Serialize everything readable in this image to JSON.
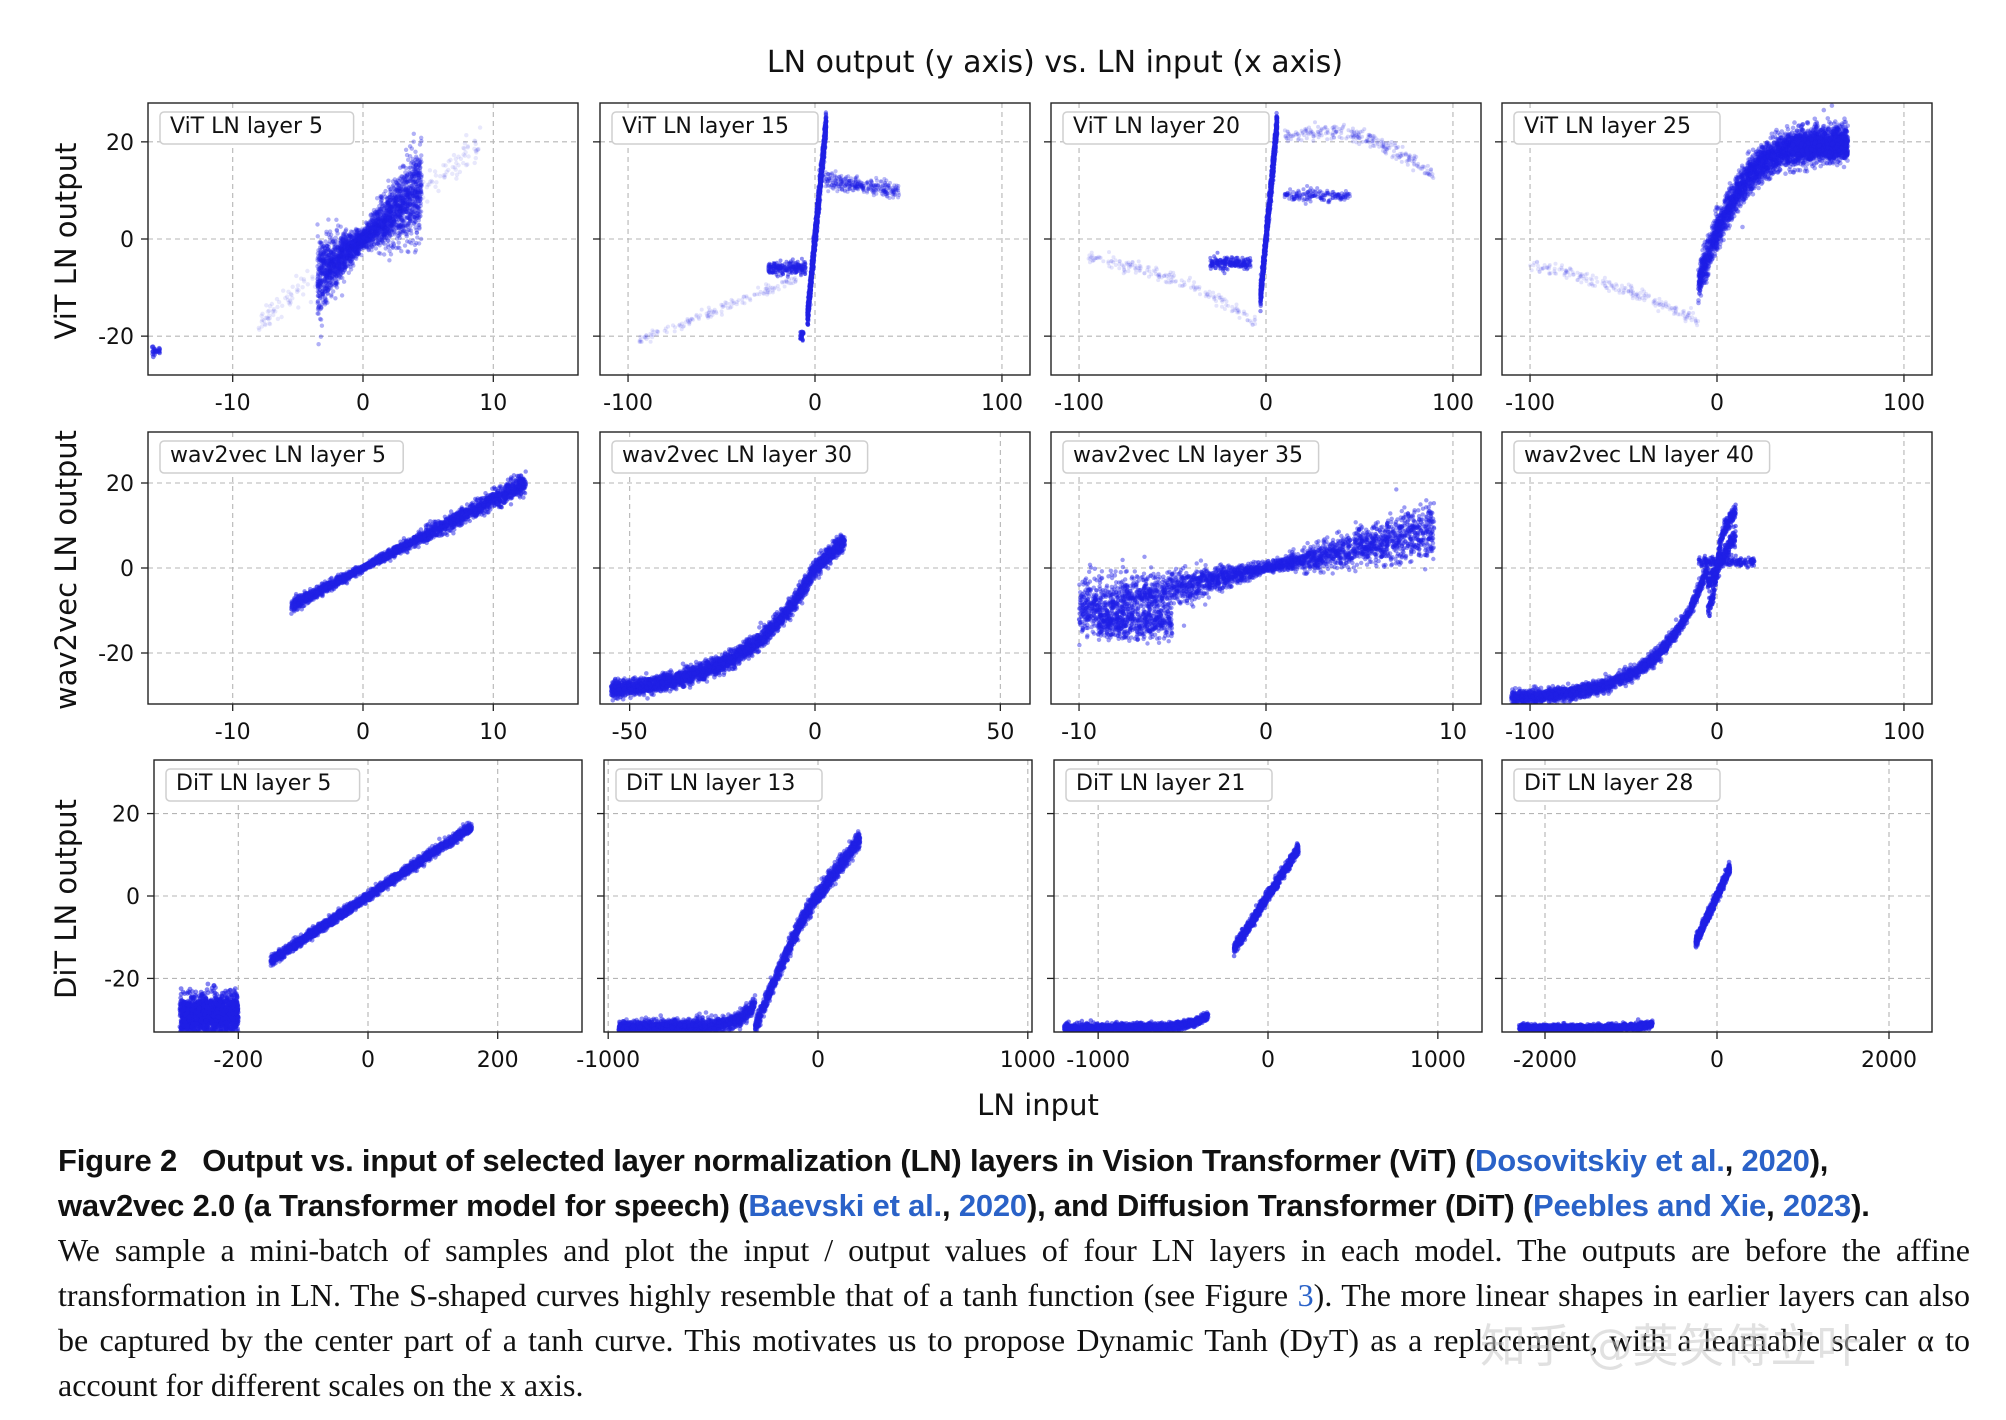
{
  "figure": {
    "title": "LN output (y axis) vs. LN input (x axis)",
    "xlabel": "LN input",
    "rows": [
      {
        "ylabel": "ViT LN output",
        "yticks": [
          20,
          0,
          -20
        ]
      },
      {
        "ylabel": "wav2vec LN output",
        "yticks": [
          20,
          0,
          -20
        ]
      },
      {
        "ylabel": "DiT LN output",
        "yticks": [
          20,
          0,
          -20
        ]
      }
    ]
  },
  "chart_data": [
    {
      "type": "scatter",
      "title": "ViT LN layer 5",
      "model": "ViT",
      "layer": 5,
      "xlim": [
        -16.5,
        16.5
      ],
      "ylim": [
        -28,
        28
      ],
      "xticks": [
        -10,
        0,
        10
      ],
      "yticks": [
        -20,
        0,
        20
      ],
      "xlabel": "LN input",
      "ylabel": "ViT LN output"
    },
    {
      "type": "scatter",
      "title": "ViT LN layer 15",
      "model": "ViT",
      "layer": 15,
      "xlim": [
        -115,
        115
      ],
      "ylim": [
        -28,
        28
      ],
      "xticks": [
        -100,
        0,
        100
      ],
      "yticks": [
        -20,
        0,
        20
      ],
      "xlabel": "LN input",
      "ylabel": "ViT LN output"
    },
    {
      "type": "scatter",
      "title": "ViT LN layer 20",
      "model": "ViT",
      "layer": 20,
      "xlim": [
        -115,
        115
      ],
      "ylim": [
        -28,
        28
      ],
      "xticks": [
        -100,
        0,
        100
      ],
      "yticks": [
        -20,
        0,
        20
      ],
      "xlabel": "LN input",
      "ylabel": "ViT LN output"
    },
    {
      "type": "scatter",
      "title": "ViT LN layer 25",
      "model": "ViT",
      "layer": 25,
      "xlim": [
        -115,
        115
      ],
      "ylim": [
        -28,
        28
      ],
      "xticks": [
        -100,
        0,
        100
      ],
      "yticks": [
        -20,
        0,
        20
      ],
      "xlabel": "LN input",
      "ylabel": "ViT LN output"
    },
    {
      "type": "scatter",
      "title": "wav2vec LN layer 5",
      "model": "wav2vec",
      "layer": 5,
      "xlim": [
        -16.5,
        16.5
      ],
      "ylim": [
        -32,
        32
      ],
      "xticks": [
        -10,
        0,
        10
      ],
      "yticks": [
        -20,
        0,
        20
      ],
      "xlabel": "LN input",
      "ylabel": "wav2vec LN output"
    },
    {
      "type": "scatter",
      "title": "wav2vec LN layer 30",
      "model": "wav2vec",
      "layer": 30,
      "xlim": [
        -58,
        58
      ],
      "ylim": [
        -32,
        32
      ],
      "xticks": [
        -50,
        0,
        50
      ],
      "yticks": [
        -20,
        0,
        20
      ],
      "xlabel": "LN input",
      "ylabel": "wav2vec LN output"
    },
    {
      "type": "scatter",
      "title": "wav2vec LN layer 35",
      "model": "wav2vec",
      "layer": 35,
      "xlim": [
        -11.5,
        11.5
      ],
      "ylim": [
        -32,
        32
      ],
      "xticks": [
        -10,
        0,
        10
      ],
      "yticks": [
        -20,
        0,
        20
      ],
      "xlabel": "LN input",
      "ylabel": "wav2vec LN output"
    },
    {
      "type": "scatter",
      "title": "wav2vec LN layer 40",
      "model": "wav2vec",
      "layer": 40,
      "xlim": [
        -115,
        115
      ],
      "ylim": [
        -32,
        32
      ],
      "xticks": [
        -100,
        0,
        100
      ],
      "yticks": [
        -20,
        0,
        20
      ],
      "xlabel": "LN input",
      "ylabel": "wav2vec LN output"
    },
    {
      "type": "scatter",
      "title": "DiT LN layer 5",
      "model": "DiT",
      "layer": 5,
      "xlim": [
        -330,
        330
      ],
      "ylim": [
        -33,
        33
      ],
      "xticks": [
        -200,
        0,
        200
      ],
      "yticks": [
        -20,
        0,
        20
      ],
      "xlabel": "LN input",
      "ylabel": "DiT LN output"
    },
    {
      "type": "scatter",
      "title": "DiT LN layer 13",
      "model": "DiT",
      "layer": 13,
      "xlim": [
        -1020,
        1020
      ],
      "ylim": [
        -33,
        33
      ],
      "xticks": [
        -1000,
        0,
        1000
      ],
      "yticks": [
        -20,
        0,
        20
      ],
      "xlabel": "LN input",
      "ylabel": "DiT LN output"
    },
    {
      "type": "scatter",
      "title": "DiT LN layer 21",
      "model": "DiT",
      "layer": 21,
      "xlim": [
        -1260,
        1260
      ],
      "ylim": [
        -33,
        33
      ],
      "xticks": [
        -1000,
        0,
        1000
      ],
      "yticks": [
        -20,
        0,
        20
      ],
      "xlabel": "LN input",
      "ylabel": "DiT LN output"
    },
    {
      "type": "scatter",
      "title": "DiT LN layer 28",
      "model": "DiT",
      "layer": 28,
      "xlim": [
        -2500,
        2500
      ],
      "ylim": [
        -33,
        33
      ],
      "xticks": [
        -2000,
        0,
        2000
      ],
      "yticks": [
        -20,
        0,
        20
      ],
      "xlabel": "LN input",
      "ylabel": "DiT LN output"
    }
  ],
  "caption": {
    "figure_label": "Figure 2",
    "line1_a": "Output vs. input of selected layer normalization (LN) layers in Vision Transformer (ViT) (",
    "cite1_author": "Dosovitskiy et al.",
    "cite1_sep": ", ",
    "cite1_year": "2020",
    "line1_b": "),",
    "line2_a": "wav2vec 2.0 (a Transformer model for speech) (",
    "cite2_author": "Baevski et al.",
    "cite2_sep": ", ",
    "cite2_year": "2020",
    "line2_b": "), and Diffusion Transformer (DiT) (",
    "cite3_author": "Peebles and Xie",
    "cite3_sep": ", ",
    "cite3_year": "2023",
    "line2_c": ").",
    "body_a": "We sample a mini-batch of samples and plot the input / output values of four LN layers in each model. The outputs are before the affine transformation in LN. The S-shaped curves highly resemble that of a tanh function (see Figure ",
    "body_fig_ref": "3",
    "body_b": "). The more linear shapes in earlier layers can also be captured by the center part of a tanh curve. This motivates us to propose Dynamic Tanh (DyT) as a replacement, with a learnable scaler α to account for different scales on the x axis."
  },
  "watermark": "知乎 @莫笑傅立叶",
  "colors": {
    "scatter": "#1f1fe6",
    "citation": "#2a62c8",
    "grid": "#b5b5b5"
  }
}
